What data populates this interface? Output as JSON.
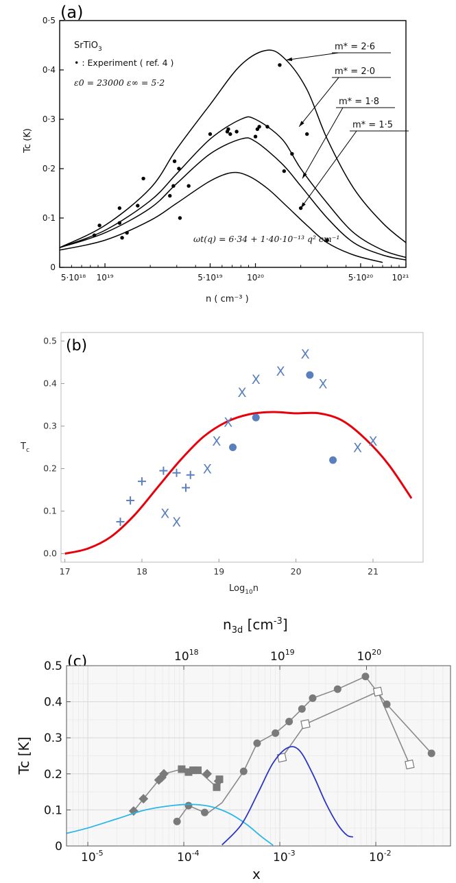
{
  "chart_data": [
    {
      "panel": "(a)",
      "type": "line",
      "title": "SrTiO3",
      "title_main": "SrTiO",
      "title_sub": "3",
      "legend_experiment": "• : Experiment ( ref. 4 )",
      "eps_text": "ε0 = 23000     ε∞ = 5·2",
      "omega_text": "ωt(q) = 6·34 + 1·40·10⁻¹³ q² cm⁻¹",
      "xlabel": "n   ( cm⁻³ )",
      "ylabel": "Tc  (K)",
      "xscale": "log",
      "xlim": [
        5e+18,
        1e+21
      ],
      "ylim": [
        0,
        0.5
      ],
      "x_tick_labels": [
        "5·10¹⁸",
        "10¹⁹",
        "5·10¹⁹",
        "10²⁰",
        "5·10²⁰",
        "10²¹"
      ],
      "x_tick_values": [
        5e+18,
        1e+19,
        5e+19,
        1e+20,
        5e+20,
        1e+21
      ],
      "y_tick_labels": [
        "0",
        "0·1",
        "0·2",
        "0·3",
        "0·4",
        "0·5"
      ],
      "y_tick_values": [
        0,
        0.1,
        0.2,
        0.3,
        0.4,
        0.5
      ],
      "series": [
        {
          "name": "m* = 2·6",
          "x": [
            5e+18,
            1e+19,
            2e+19,
            3e+19,
            5e+19,
            8e+19,
            1.2e+20,
            1.6e+20,
            2.2e+20,
            3e+20,
            4.5e+20,
            7e+20,
            1e+21
          ],
          "y": [
            0.04,
            0.085,
            0.16,
            0.24,
            0.33,
            0.41,
            0.44,
            0.42,
            0.36,
            0.26,
            0.16,
            0.09,
            0.05
          ]
        },
        {
          "name": "m* = 2·0",
          "x": [
            5e+18,
            1e+19,
            2e+19,
            3e+19,
            5e+19,
            8e+19,
            1e+20,
            1.5e+20,
            2e+20,
            3e+20,
            4.5e+20,
            7e+20,
            1e+21
          ],
          "y": [
            0.04,
            0.075,
            0.135,
            0.19,
            0.26,
            0.3,
            0.3,
            0.26,
            0.2,
            0.13,
            0.07,
            0.035,
            0.02
          ]
        },
        {
          "name": "m* = 1·8",
          "x": [
            5e+18,
            1e+19,
            2e+19,
            3e+19,
            5e+19,
            8e+19,
            1e+20,
            1.5e+20,
            2e+20,
            3e+20,
            4.5e+20,
            7e+20,
            1e+21
          ],
          "y": [
            0.04,
            0.07,
            0.12,
            0.17,
            0.23,
            0.26,
            0.255,
            0.21,
            0.165,
            0.1,
            0.05,
            0.025,
            0.015
          ]
        },
        {
          "name": "m* = 1·5",
          "x": [
            5e+18,
            1e+19,
            2e+19,
            3e+19,
            5e+19,
            7e+19,
            9e+19,
            1.2e+20,
            1.6e+20,
            2.2e+20,
            3e+20,
            4.5e+20,
            7e+20
          ],
          "y": [
            0.035,
            0.055,
            0.095,
            0.13,
            0.175,
            0.192,
            0.185,
            0.16,
            0.125,
            0.085,
            0.05,
            0.025,
            0.01
          ]
        },
        {
          "name": "Experiment (ref. 4)",
          "kind": "points",
          "x": [
            8.5e+18,
            9.2e+18,
            1.25e+19,
            1.25e+19,
            1.3e+19,
            1.4e+19,
            1.65e+19,
            1.8e+19,
            2.7e+19,
            2.85e+19,
            2.9e+19,
            3.1e+19,
            3.15e+19,
            3.6e+19,
            5e+19,
            6.5e+19,
            6.6e+19,
            6.8e+19,
            7.5e+19,
            1e+20,
            1.03e+20,
            1.06e+20,
            1.2e+20,
            1.45e+20,
            1.55e+20,
            1.75e+20,
            2e+20,
            2.2e+20,
            3e+20
          ],
          "y": [
            0.065,
            0.085,
            0.12,
            0.09,
            0.06,
            0.07,
            0.125,
            0.18,
            0.145,
            0.165,
            0.215,
            0.2,
            0.1,
            0.165,
            0.27,
            0.275,
            0.28,
            0.27,
            0.275,
            0.265,
            0.28,
            0.285,
            0.285,
            0.41,
            0.195,
            0.23,
            0.12,
            0.27,
            0.055
          ]
        }
      ]
    },
    {
      "panel": "(b)",
      "type": "scatter",
      "xlabel_main": "Log",
      "xlabel_sub": "10",
      "xlabel_tail": "n",
      "ylabel_main": "T",
      "ylabel_sub": "c",
      "xlim": [
        17,
        21.5
      ],
      "ylim": [
        0,
        0.5
      ],
      "x_tick_labels": [
        "17",
        "18",
        "19",
        "20",
        "21"
      ],
      "x_tick_values": [
        17,
        18,
        19,
        20,
        21
      ],
      "y_tick_labels": [
        "0.0",
        "0.1",
        "0.2",
        "0.3",
        "0.4",
        "0.5"
      ],
      "y_tick_values": [
        0,
        0.1,
        0.2,
        0.3,
        0.4,
        0.5
      ],
      "cross_glyph": "X",
      "series": [
        {
          "name": "theory",
          "kind": "line",
          "color": "#e8000b",
          "x": [
            17,
            17.3,
            17.6,
            17.9,
            18.2,
            18.5,
            18.8,
            19.1,
            19.4,
            19.7,
            20.0,
            20.3,
            20.6,
            20.9,
            21.2,
            21.5
          ],
          "y": [
            0,
            0.012,
            0.04,
            0.09,
            0.155,
            0.22,
            0.275,
            0.31,
            0.328,
            0.333,
            0.33,
            0.33,
            0.313,
            0.27,
            0.21,
            0.13
          ]
        },
        {
          "name": "plus",
          "kind": "plus",
          "color": "#5a7fbf",
          "x": [
            17.72,
            17.85,
            18.0,
            18.28,
            18.45,
            18.57,
            18.63
          ],
          "y": [
            0.075,
            0.125,
            0.17,
            0.195,
            0.19,
            0.155,
            0.185
          ]
        },
        {
          "name": "cross",
          "kind": "cross",
          "color": "#5a7fbf",
          "x": [
            18.3,
            18.45,
            18.85,
            18.97,
            19.12,
            19.3,
            19.48,
            19.8,
            20.12,
            20.35,
            20.8,
            21.0
          ],
          "y": [
            0.095,
            0.075,
            0.2,
            0.265,
            0.31,
            0.38,
            0.41,
            0.43,
            0.47,
            0.4,
            0.25,
            0.265
          ]
        },
        {
          "name": "dots",
          "kind": "dot",
          "color": "#5a7fbf",
          "x": [
            19.18,
            19.48,
            20.18,
            20.48
          ],
          "y": [
            0.25,
            0.32,
            0.42,
            0.22
          ]
        }
      ]
    },
    {
      "panel": "(c)",
      "type": "line",
      "xlabel": "x",
      "ylabel": "Tc [K]",
      "top_label": "n3d [cm⁻³]",
      "top_label_main": "n",
      "top_label_sub": "3d",
      "top_label_tail": " [cm",
      "top_label_exp": "-3",
      "top_label_close": "]",
      "xscale": "log",
      "xlim": [
        6e-06,
        0.06
      ],
      "ylim": [
        0,
        0.5
      ],
      "x_tick_labels": [
        "10",
        "10",
        "10",
        "10"
      ],
      "x_tick_exponents": [
        "-5",
        "-4",
        "-3",
        "-2"
      ],
      "x_tick_values": [
        1e-05,
        0.0001,
        0.001,
        0.01
      ],
      "top_tick_labels": [
        "10",
        "10",
        "10"
      ],
      "top_tick_exponents": [
        "18",
        "19",
        "20"
      ],
      "top_tick_values": [
        0.0001,
        0.001,
        0.008
      ],
      "y_tick_labels": [
        "0",
        "0.1",
        "0.2",
        "0.3",
        "0.4",
        "0.5"
      ],
      "y_tick_values": [
        0,
        0.1,
        0.2,
        0.3,
        0.4,
        0.5
      ],
      "series": [
        {
          "name": "diamonds",
          "kind": "diamond",
          "color": "#7a7a7a",
          "x": [
            3e-05,
            3.8e-05,
            5.5e-05,
            5.9e-05,
            6.2e-05
          ],
          "y": [
            0.097,
            0.131,
            0.183,
            0.19,
            0.2
          ]
        },
        {
          "name": "squares",
          "kind": "square",
          "color": "#7a7a7a",
          "x": [
            9.5e-05,
            0.000112,
            0.000125,
            0.00014,
            0.00022,
            0.000235
          ],
          "y": [
            0.213,
            0.205,
            0.21,
            0.21,
            0.163,
            0.185
          ]
        },
        {
          "name": "dots_lower",
          "kind": "dot",
          "color": "#7a7a7a",
          "x": [
            8.5e-05,
            0.000112,
            0.000165
          ],
          "y": [
            0.068,
            0.112,
            0.093
          ]
        },
        {
          "name": "diamonds_tail",
          "kind": "diamond",
          "color": "#7a7a7a",
          "x": [
            0.000175,
            0.00023
          ],
          "y": [
            0.2,
            0.18
          ]
        },
        {
          "name": "dots_upper",
          "kind": "dot",
          "color": "#7a7a7a",
          "x": [
            0.00042,
            0.00058,
            0.0009,
            0.00125,
            0.0017,
            0.0022,
            0.004,
            0.0078,
            0.013,
            0.038
          ],
          "y": [
            0.207,
            0.285,
            0.313,
            0.345,
            0.38,
            0.41,
            0.435,
            0.47,
            0.393,
            0.257
          ]
        },
        {
          "name": "open_squares",
          "kind": "open_square",
          "color": "#7a7a7a",
          "x": [
            0.00105,
            0.00185,
            0.0105,
            0.0225
          ],
          "y": [
            0.245,
            0.338,
            0.428,
            0.226
          ]
        },
        {
          "name": "cyan_curve",
          "kind": "line",
          "color": "#29b6e8",
          "x": [
            6e-06,
            1e-05,
            2e-05,
            4e-05,
            8e-05,
            0.00013,
            0.0002,
            0.0003,
            0.00045,
            0.00065,
            0.00085
          ],
          "y": [
            0.035,
            0.05,
            0.075,
            0.1,
            0.113,
            0.115,
            0.108,
            0.09,
            0.06,
            0.025,
            0.002
          ]
        },
        {
          "name": "blue_curve",
          "kind": "line",
          "color": "#2a35c8",
          "x": [
            0.00025,
            0.0004,
            0.0006,
            0.00085,
            0.0012,
            0.0016,
            0.0022,
            0.003,
            0.004,
            0.005,
            0.0058
          ],
          "y": [
            0.003,
            0.06,
            0.15,
            0.23,
            0.272,
            0.265,
            0.2,
            0.12,
            0.06,
            0.03,
            0.025
          ]
        }
      ]
    }
  ]
}
